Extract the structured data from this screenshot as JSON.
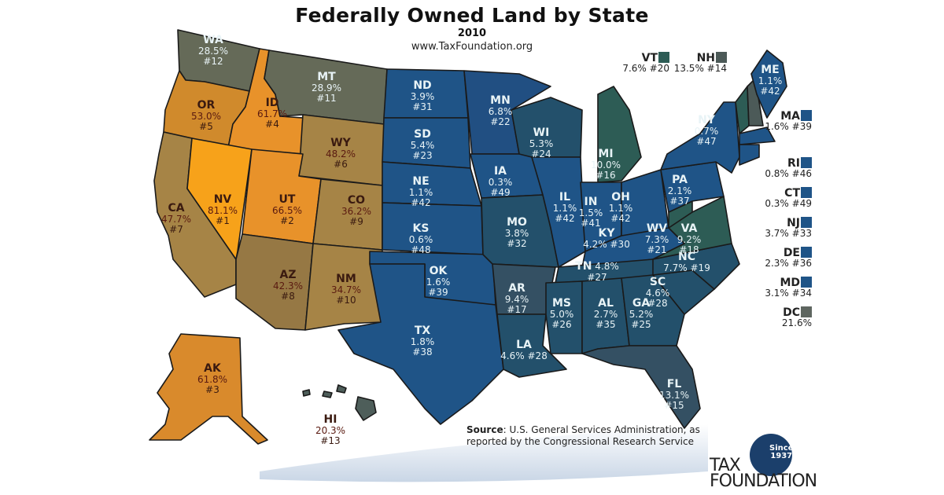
{
  "header": {
    "title": "Federally Owned Land by State",
    "year": "2010",
    "url": "www.TaxFoundation.org"
  },
  "colors": {
    "top_orange": "#f7a21a",
    "orange": "#e8922a",
    "amber": "#d98a2c",
    "tan": "#a68446",
    "olive_gray": "#656a58",
    "blue": "#1f5487",
    "teal_blue": "#23506b",
    "slate": "#345063",
    "green_teal": "#2d5c55",
    "border": "#1a1a1a"
  },
  "states": [
    {
      "abbr": "WA",
      "pct": "28.5%",
      "rank": "#12"
    },
    {
      "abbr": "OR",
      "pct": "53.0%",
      "rank": "#5"
    },
    {
      "abbr": "ID",
      "pct": "61.7%",
      "rank": "#4"
    },
    {
      "abbr": "MT",
      "pct": "28.9%",
      "rank": "#11"
    },
    {
      "abbr": "WY",
      "pct": "48.2%",
      "rank": "#6"
    },
    {
      "abbr": "NV",
      "pct": "81.1%",
      "rank": "#1"
    },
    {
      "abbr": "CA",
      "pct": "47.7%",
      "rank": "#7"
    },
    {
      "abbr": "UT",
      "pct": "66.5%",
      "rank": "#2"
    },
    {
      "abbr": "CO",
      "pct": "36.2%",
      "rank": "#9"
    },
    {
      "abbr": "AZ",
      "pct": "42.3%",
      "rank": "#8"
    },
    {
      "abbr": "NM",
      "pct": "34.7%",
      "rank": "#10"
    },
    {
      "abbr": "ND",
      "pct": "3.9%",
      "rank": "#31"
    },
    {
      "abbr": "SD",
      "pct": "5.4%",
      "rank": "#23"
    },
    {
      "abbr": "NE",
      "pct": "1.1%",
      "rank": "#42"
    },
    {
      "abbr": "KS",
      "pct": "0.6%",
      "rank": "#48"
    },
    {
      "abbr": "OK",
      "pct": "1.6%",
      "rank": "#39"
    },
    {
      "abbr": "TX",
      "pct": "1.8%",
      "rank": "#38"
    },
    {
      "abbr": "MN",
      "pct": "6.8%",
      "rank": "#22"
    },
    {
      "abbr": "IA",
      "pct": "0.3%",
      "rank": "#49"
    },
    {
      "abbr": "MO",
      "pct": "3.8%",
      "rank": "#32"
    },
    {
      "abbr": "AR",
      "pct": "9.4%",
      "rank": "#17"
    },
    {
      "abbr": "LA",
      "pct": "4.6%",
      "rank": "#28"
    },
    {
      "abbr": "WI",
      "pct": "5.3%",
      "rank": "#24"
    },
    {
      "abbr": "IL",
      "pct": "1.1%",
      "rank": "#42"
    },
    {
      "abbr": "MI",
      "pct": "10.0%",
      "rank": "#16"
    },
    {
      "abbr": "IN",
      "pct": "1.5%",
      "rank": "#41"
    },
    {
      "abbr": "OH",
      "pct": "1.1%",
      "rank": "#42"
    },
    {
      "abbr": "KY",
      "pct": "4.2%",
      "rank": "#30"
    },
    {
      "abbr": "TN",
      "pct": "4.8%",
      "rank": "#27"
    },
    {
      "abbr": "MS",
      "pct": "5.0%",
      "rank": "#26"
    },
    {
      "abbr": "AL",
      "pct": "2.7%",
      "rank": "#35"
    },
    {
      "abbr": "GA",
      "pct": "5.2%",
      "rank": "#25"
    },
    {
      "abbr": "FL",
      "pct": "13.1%",
      "rank": "#15"
    },
    {
      "abbr": "SC",
      "pct": "4.6%",
      "rank": "#28"
    },
    {
      "abbr": "NC",
      "pct": "7.7%",
      "rank": "#19"
    },
    {
      "abbr": "VA",
      "pct": "9.2%",
      "rank": "#18"
    },
    {
      "abbr": "WV",
      "pct": "7.3%",
      "rank": "#21"
    },
    {
      "abbr": "PA",
      "pct": "2.1%",
      "rank": "#37"
    },
    {
      "abbr": "NY",
      "pct": "0.7%",
      "rank": "#47"
    },
    {
      "abbr": "ME",
      "pct": "1.1%",
      "rank": "#42"
    },
    {
      "abbr": "AK",
      "pct": "61.8%",
      "rank": "#3"
    },
    {
      "abbr": "HI",
      "pct": "20.3%",
      "rank": "#13"
    }
  ],
  "small_states": [
    {
      "abbr": "VT",
      "pct": "7.6%",
      "rank": "#20"
    },
    {
      "abbr": "NH",
      "pct": "13.5%",
      "rank": "#14"
    },
    {
      "abbr": "MA",
      "pct": "1.6%",
      "rank": "#39"
    },
    {
      "abbr": "RI",
      "pct": "0.8%",
      "rank": "#46"
    },
    {
      "abbr": "CT",
      "pct": "0.3%",
      "rank": "#49"
    },
    {
      "abbr": "NJ",
      "pct": "3.7%",
      "rank": "#33"
    },
    {
      "abbr": "DE",
      "pct": "2.3%",
      "rank": "#36"
    },
    {
      "abbr": "MD",
      "pct": "3.1%",
      "rank": "#34"
    },
    {
      "abbr": "DC",
      "pct": "21.6%",
      "rank": ""
    }
  ],
  "source": {
    "label": "Source",
    "text": ": U.S. General Services Administration, as reported by the Congressional Research Service"
  },
  "logo": {
    "since": "Since",
    "year": "1937",
    "line1": "TAX",
    "line2": "FOUNDATION"
  }
}
